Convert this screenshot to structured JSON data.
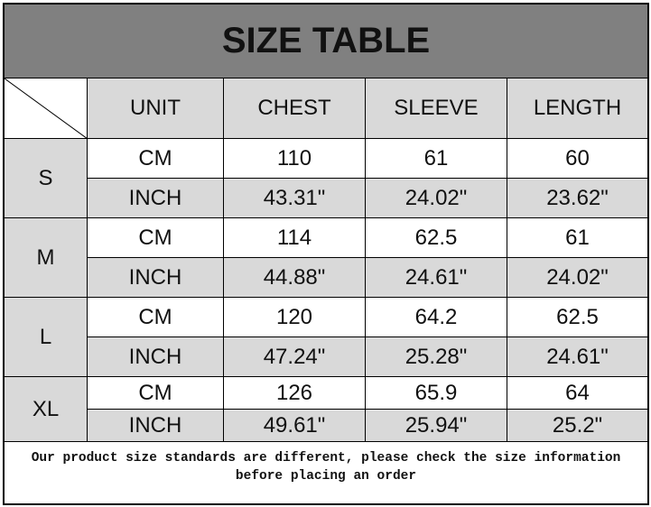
{
  "title": "SIZE TABLE",
  "headers": [
    "UNIT",
    "CHEST",
    "SLEEVE",
    "LENGTH"
  ],
  "rows": [
    {
      "size": "S",
      "cm": {
        "unit": "CM",
        "values": [
          "110",
          "61",
          "60"
        ]
      },
      "inch": {
        "unit": "INCH",
        "values": [
          "43.31\"",
          "24.02\"",
          "23.62\""
        ]
      }
    },
    {
      "size": "M",
      "cm": {
        "unit": "CM",
        "values": [
          "114",
          "62.5",
          "61"
        ]
      },
      "inch": {
        "unit": "INCH",
        "values": [
          "44.88\"",
          "24.61\"",
          "24.02\""
        ]
      }
    },
    {
      "size": "L",
      "cm": {
        "unit": "CM",
        "values": [
          "120",
          "64.2",
          "62.5"
        ]
      },
      "inch": {
        "unit": "INCH",
        "values": [
          "47.24\"",
          "25.28\"",
          "24.61\""
        ]
      }
    },
    {
      "size": "XL",
      "cm": {
        "unit": "CM",
        "values": [
          "126",
          "65.9",
          "64"
        ]
      },
      "inch": {
        "unit": "INCH",
        "values": [
          "49.61\"",
          "25.94\"",
          "25.2\""
        ]
      }
    }
  ],
  "note": "Our product size standards are different, please check the size information before placing an order",
  "colors": {
    "title_bg": "#808080",
    "cell_gray": "#d9d9d9"
  }
}
